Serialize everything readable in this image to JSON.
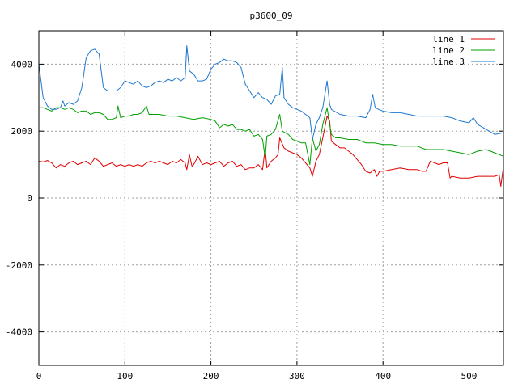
{
  "chart_data": {
    "type": "line",
    "title": "p3600_09",
    "xlabel": "",
    "ylabel": "",
    "xlim": [
      0,
      540
    ],
    "ylim": [
      -5000,
      5000
    ],
    "x_ticks": [
      0,
      100,
      200,
      300,
      400,
      500
    ],
    "y_ticks": [
      -4000,
      -2000,
      0,
      2000,
      4000
    ],
    "grid": true,
    "legend_position": "top-right",
    "series": [
      {
        "name": "line 1",
        "color": "#e00000",
        "points": [
          [
            0,
            1100
          ],
          [
            5,
            1080
          ],
          [
            10,
            1120
          ],
          [
            15,
            1050
          ],
          [
            20,
            900
          ],
          [
            25,
            1000
          ],
          [
            30,
            950
          ],
          [
            35,
            1050
          ],
          [
            40,
            1100
          ],
          [
            45,
            1000
          ],
          [
            50,
            1050
          ],
          [
            55,
            1100
          ],
          [
            60,
            1000
          ],
          [
            65,
            1200
          ],
          [
            70,
            1100
          ],
          [
            75,
            950
          ],
          [
            80,
            1000
          ],
          [
            85,
            1050
          ],
          [
            90,
            950
          ],
          [
            95,
            1000
          ],
          [
            100,
            950
          ],
          [
            105,
            1000
          ],
          [
            110,
            950
          ],
          [
            115,
            1000
          ],
          [
            120,
            950
          ],
          [
            125,
            1050
          ],
          [
            130,
            1100
          ],
          [
            135,
            1050
          ],
          [
            140,
            1100
          ],
          [
            145,
            1050
          ],
          [
            150,
            1000
          ],
          [
            155,
            1100
          ],
          [
            160,
            1050
          ],
          [
            165,
            1150
          ],
          [
            170,
            1050
          ],
          [
            172,
            850
          ],
          [
            175,
            1300
          ],
          [
            178,
            950
          ],
          [
            180,
            1000
          ],
          [
            185,
            1250
          ],
          [
            190,
            1000
          ],
          [
            195,
            1050
          ],
          [
            200,
            1000
          ],
          [
            205,
            1050
          ],
          [
            210,
            1100
          ],
          [
            215,
            950
          ],
          [
            220,
            1050
          ],
          [
            225,
            1100
          ],
          [
            230,
            950
          ],
          [
            235,
            1000
          ],
          [
            240,
            850
          ],
          [
            245,
            900
          ],
          [
            250,
            900
          ],
          [
            255,
            1000
          ],
          [
            260,
            850
          ],
          [
            263,
            1500
          ],
          [
            265,
            900
          ],
          [
            270,
            1100
          ],
          [
            275,
            1200
          ],
          [
            278,
            1300
          ],
          [
            280,
            1800
          ],
          [
            285,
            1500
          ],
          [
            290,
            1400
          ],
          [
            295,
            1350
          ],
          [
            300,
            1300
          ],
          [
            305,
            1200
          ],
          [
            310,
            1050
          ],
          [
            315,
            900
          ],
          [
            318,
            650
          ],
          [
            322,
            1100
          ],
          [
            326,
            1300
          ],
          [
            330,
            1800
          ],
          [
            335,
            2450
          ],
          [
            338,
            2300
          ],
          [
            340,
            1700
          ],
          [
            345,
            1600
          ],
          [
            350,
            1500
          ],
          [
            355,
            1500
          ],
          [
            360,
            1400
          ],
          [
            365,
            1300
          ],
          [
            370,
            1150
          ],
          [
            375,
            1000
          ],
          [
            380,
            800
          ],
          [
            385,
            750
          ],
          [
            390,
            850
          ],
          [
            393,
            650
          ],
          [
            396,
            800
          ],
          [
            400,
            800
          ],
          [
            410,
            850
          ],
          [
            420,
            900
          ],
          [
            430,
            850
          ],
          [
            440,
            850
          ],
          [
            445,
            800
          ],
          [
            450,
            800
          ],
          [
            455,
            1100
          ],
          [
            460,
            1050
          ],
          [
            465,
            1000
          ],
          [
            470,
            1050
          ],
          [
            475,
            1050
          ],
          [
            478,
            600
          ],
          [
            480,
            650
          ],
          [
            490,
            600
          ],
          [
            500,
            600
          ],
          [
            510,
            650
          ],
          [
            520,
            650
          ],
          [
            530,
            650
          ],
          [
            535,
            700
          ],
          [
            537,
            350
          ],
          [
            540,
            950
          ]
        ]
      },
      {
        "name": "line 2",
        "color": "#00a000",
        "points": [
          [
            0,
            2700
          ],
          [
            5,
            2700
          ],
          [
            10,
            2650
          ],
          [
            15,
            2600
          ],
          [
            20,
            2700
          ],
          [
            25,
            2700
          ],
          [
            30,
            2650
          ],
          [
            35,
            2700
          ],
          [
            40,
            2650
          ],
          [
            45,
            2550
          ],
          [
            50,
            2600
          ],
          [
            55,
            2600
          ],
          [
            60,
            2500
          ],
          [
            65,
            2550
          ],
          [
            70,
            2550
          ],
          [
            75,
            2500
          ],
          [
            80,
            2350
          ],
          [
            85,
            2350
          ],
          [
            90,
            2400
          ],
          [
            92,
            2750
          ],
          [
            95,
            2400
          ],
          [
            100,
            2450
          ],
          [
            105,
            2450
          ],
          [
            110,
            2500
          ],
          [
            115,
            2500
          ],
          [
            120,
            2550
          ],
          [
            125,
            2750
          ],
          [
            128,
            2500
          ],
          [
            130,
            2500
          ],
          [
            140,
            2500
          ],
          [
            150,
            2450
          ],
          [
            160,
            2450
          ],
          [
            170,
            2400
          ],
          [
            180,
            2350
          ],
          [
            190,
            2400
          ],
          [
            200,
            2350
          ],
          [
            205,
            2300
          ],
          [
            210,
            2100
          ],
          [
            215,
            2200
          ],
          [
            220,
            2150
          ],
          [
            225,
            2200
          ],
          [
            230,
            2050
          ],
          [
            235,
            2050
          ],
          [
            240,
            2000
          ],
          [
            245,
            2050
          ],
          [
            250,
            1850
          ],
          [
            255,
            1900
          ],
          [
            260,
            1750
          ],
          [
            263,
            1200
          ],
          [
            265,
            1850
          ],
          [
            270,
            1900
          ],
          [
            275,
            2050
          ],
          [
            280,
            2500
          ],
          [
            283,
            2000
          ],
          [
            290,
            1900
          ],
          [
            295,
            1750
          ],
          [
            300,
            1700
          ],
          [
            305,
            1650
          ],
          [
            310,
            1650
          ],
          [
            315,
            1000
          ],
          [
            318,
            1800
          ],
          [
            322,
            1400
          ],
          [
            326,
            1600
          ],
          [
            330,
            2200
          ],
          [
            335,
            2700
          ],
          [
            338,
            2200
          ],
          [
            340,
            1900
          ],
          [
            345,
            1800
          ],
          [
            350,
            1800
          ],
          [
            360,
            1750
          ],
          [
            370,
            1750
          ],
          [
            380,
            1650
          ],
          [
            390,
            1650
          ],
          [
            400,
            1600
          ],
          [
            410,
            1600
          ],
          [
            420,
            1550
          ],
          [
            430,
            1550
          ],
          [
            440,
            1550
          ],
          [
            450,
            1450
          ],
          [
            460,
            1450
          ],
          [
            470,
            1450
          ],
          [
            480,
            1400
          ],
          [
            490,
            1350
          ],
          [
            500,
            1300
          ],
          [
            510,
            1400
          ],
          [
            520,
            1450
          ],
          [
            530,
            1350
          ],
          [
            540,
            1250
          ]
        ]
      },
      {
        "name": "line 3",
        "color": "#1e78d0",
        "points": [
          [
            0,
            4000
          ],
          [
            5,
            3000
          ],
          [
            10,
            2750
          ],
          [
            15,
            2650
          ],
          [
            20,
            2650
          ],
          [
            25,
            2700
          ],
          [
            28,
            2900
          ],
          [
            30,
            2750
          ],
          [
            35,
            2850
          ],
          [
            40,
            2800
          ],
          [
            45,
            2900
          ],
          [
            50,
            3300
          ],
          [
            55,
            4200
          ],
          [
            60,
            4400
          ],
          [
            65,
            4450
          ],
          [
            70,
            4300
          ],
          [
            75,
            3300
          ],
          [
            80,
            3200
          ],
          [
            85,
            3200
          ],
          [
            90,
            3200
          ],
          [
            95,
            3300
          ],
          [
            100,
            3500
          ],
          [
            105,
            3450
          ],
          [
            110,
            3400
          ],
          [
            115,
            3500
          ],
          [
            120,
            3350
          ],
          [
            125,
            3300
          ],
          [
            130,
            3350
          ],
          [
            135,
            3450
          ],
          [
            140,
            3500
          ],
          [
            145,
            3450
          ],
          [
            150,
            3550
          ],
          [
            155,
            3500
          ],
          [
            160,
            3600
          ],
          [
            165,
            3500
          ],
          [
            170,
            3600
          ],
          [
            172,
            4550
          ],
          [
            175,
            3800
          ],
          [
            180,
            3700
          ],
          [
            185,
            3500
          ],
          [
            190,
            3500
          ],
          [
            195,
            3550
          ],
          [
            200,
            3850
          ],
          [
            205,
            4000
          ],
          [
            210,
            4050
          ],
          [
            215,
            4150
          ],
          [
            220,
            4100
          ],
          [
            225,
            4100
          ],
          [
            230,
            4050
          ],
          [
            235,
            3900
          ],
          [
            240,
            3400
          ],
          [
            245,
            3200
          ],
          [
            250,
            3000
          ],
          [
            255,
            3150
          ],
          [
            260,
            3000
          ],
          [
            265,
            2950
          ],
          [
            270,
            2800
          ],
          [
            275,
            3050
          ],
          [
            280,
            3100
          ],
          [
            283,
            3900
          ],
          [
            285,
            3000
          ],
          [
            290,
            2800
          ],
          [
            295,
            2700
          ],
          [
            300,
            2650
          ],
          [
            305,
            2600
          ],
          [
            310,
            2500
          ],
          [
            315,
            2400
          ],
          [
            318,
            1750
          ],
          [
            322,
            2200
          ],
          [
            326,
            2400
          ],
          [
            330,
            2700
          ],
          [
            335,
            3500
          ],
          [
            338,
            2800
          ],
          [
            340,
            2650
          ],
          [
            350,
            2500
          ],
          [
            360,
            2450
          ],
          [
            370,
            2450
          ],
          [
            380,
            2400
          ],
          [
            385,
            2650
          ],
          [
            388,
            3100
          ],
          [
            391,
            2700
          ],
          [
            395,
            2650
          ],
          [
            400,
            2600
          ],
          [
            410,
            2550
          ],
          [
            420,
            2550
          ],
          [
            430,
            2500
          ],
          [
            440,
            2450
          ],
          [
            450,
            2450
          ],
          [
            460,
            2450
          ],
          [
            470,
            2450
          ],
          [
            480,
            2400
          ],
          [
            490,
            2300
          ],
          [
            500,
            2250
          ],
          [
            505,
            2400
          ],
          [
            510,
            2200
          ],
          [
            520,
            2050
          ],
          [
            530,
            1900
          ],
          [
            540,
            1950
          ]
        ]
      }
    ]
  }
}
